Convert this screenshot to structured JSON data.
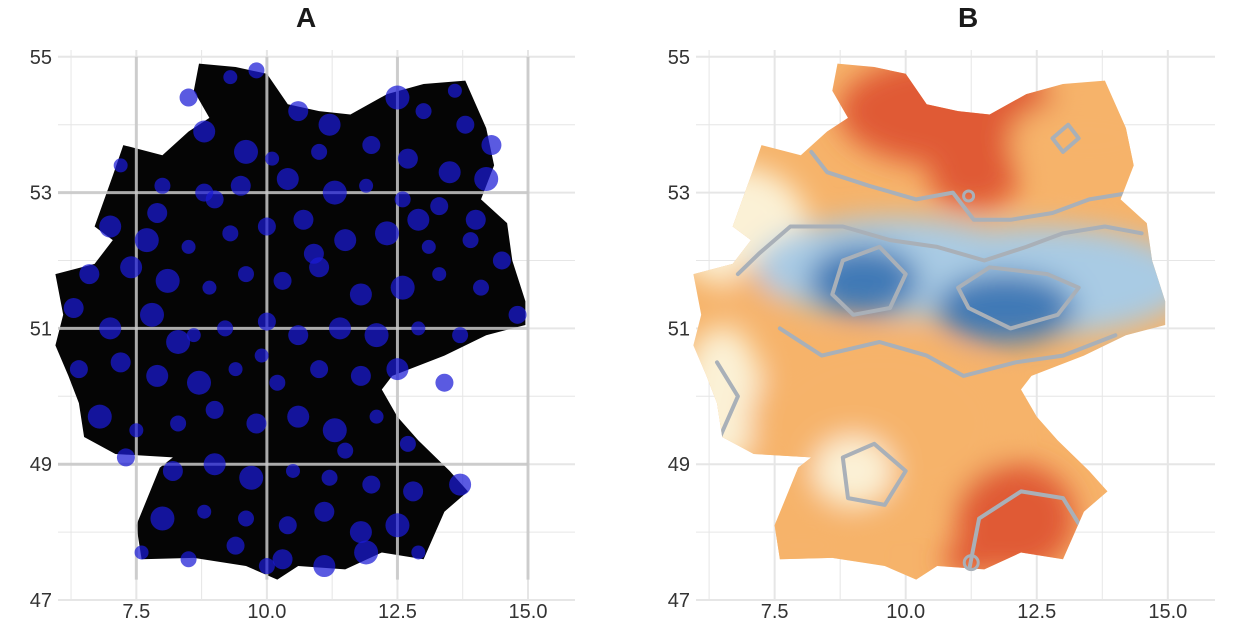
{
  "panels": [
    {
      "id": "A",
      "title": "A"
    },
    {
      "id": "B",
      "title": "B"
    }
  ],
  "axes": {
    "xlim": [
      6,
      15.9
    ],
    "ylim": [
      47,
      55.1
    ],
    "x_ticks": [
      "7.5",
      "10.0",
      "12.5",
      "15.0"
    ],
    "x_tick_values": [
      7.5,
      10.0,
      12.5,
      15.0
    ],
    "y_ticks": [
      "47",
      "49",
      "51",
      "53",
      "55"
    ],
    "y_tick_values": [
      47,
      49,
      51,
      53,
      55
    ]
  },
  "colors": {
    "land_a": "#050505",
    "stations": "#1a1ad6",
    "grid": "#e6e6e6",
    "grid_a": "#c8c8c8",
    "contour": "#a9b0b8",
    "warm_high": "#e05a34",
    "warm_mid": "#f6b36a",
    "neutral": "#fbf1d6",
    "cool_mid": "#a9cbe4",
    "cool_low": "#3f79b6"
  },
  "stations": [
    [
      9.3,
      54.7
    ],
    [
      9.8,
      54.8
    ],
    [
      8.5,
      54.4
    ],
    [
      10.6,
      54.2
    ],
    [
      11.2,
      54.0
    ],
    [
      12.5,
      54.4
    ],
    [
      13.6,
      54.5
    ],
    [
      13.0,
      54.2
    ],
    [
      13.8,
      54.0
    ],
    [
      14.3,
      53.7
    ],
    [
      8.8,
      53.9
    ],
    [
      9.6,
      53.6
    ],
    [
      10.1,
      53.5
    ],
    [
      11.0,
      53.6
    ],
    [
      12.0,
      53.7
    ],
    [
      12.7,
      53.5
    ],
    [
      13.5,
      53.3
    ],
    [
      14.2,
      53.2
    ],
    [
      7.2,
      53.4
    ],
    [
      8.0,
      53.1
    ],
    [
      8.8,
      53.0
    ],
    [
      9.5,
      53.1
    ],
    [
      10.4,
      53.2
    ],
    [
      11.3,
      53.0
    ],
    [
      11.9,
      53.1
    ],
    [
      12.6,
      52.9
    ],
    [
      13.3,
      52.8
    ],
    [
      14.0,
      52.6
    ],
    [
      7.0,
      52.5
    ],
    [
      7.7,
      52.3
    ],
    [
      8.5,
      52.2
    ],
    [
      9.3,
      52.4
    ],
    [
      10.0,
      52.5
    ],
    [
      10.7,
      52.6
    ],
    [
      11.5,
      52.3
    ],
    [
      12.3,
      52.4
    ],
    [
      13.1,
      52.2
    ],
    [
      13.9,
      52.3
    ],
    [
      14.5,
      52.0
    ],
    [
      6.6,
      51.8
    ],
    [
      7.4,
      51.9
    ],
    [
      8.1,
      51.7
    ],
    [
      8.9,
      51.6
    ],
    [
      9.6,
      51.8
    ],
    [
      10.3,
      51.7
    ],
    [
      11.0,
      51.9
    ],
    [
      11.8,
      51.5
    ],
    [
      12.6,
      51.6
    ],
    [
      13.3,
      51.8
    ],
    [
      14.1,
      51.6
    ],
    [
      14.8,
      51.2
    ],
    [
      6.3,
      51.3
    ],
    [
      7.0,
      51.0
    ],
    [
      7.8,
      51.2
    ],
    [
      8.6,
      50.9
    ],
    [
      9.2,
      51.0
    ],
    [
      10.0,
      51.1
    ],
    [
      10.6,
      50.9
    ],
    [
      11.4,
      51.0
    ],
    [
      12.1,
      50.9
    ],
    [
      12.9,
      51.0
    ],
    [
      13.7,
      50.9
    ],
    [
      6.4,
      50.4
    ],
    [
      7.2,
      50.5
    ],
    [
      7.9,
      50.3
    ],
    [
      8.7,
      50.2
    ],
    [
      9.4,
      50.4
    ],
    [
      10.2,
      50.2
    ],
    [
      11.0,
      50.4
    ],
    [
      11.8,
      50.3
    ],
    [
      12.5,
      50.4
    ],
    [
      6.8,
      49.7
    ],
    [
      7.5,
      49.5
    ],
    [
      8.3,
      49.6
    ],
    [
      9.0,
      49.8
    ],
    [
      9.8,
      49.6
    ],
    [
      10.6,
      49.7
    ],
    [
      11.3,
      49.5
    ],
    [
      12.1,
      49.7
    ],
    [
      12.7,
      49.3
    ],
    [
      7.3,
      49.1
    ],
    [
      8.2,
      48.9
    ],
    [
      9.0,
      49.0
    ],
    [
      9.7,
      48.8
    ],
    [
      10.5,
      48.9
    ],
    [
      11.2,
      48.8
    ],
    [
      12.0,
      48.7
    ],
    [
      12.8,
      48.6
    ],
    [
      13.7,
      48.7
    ],
    [
      8.0,
      48.2
    ],
    [
      8.8,
      48.3
    ],
    [
      9.6,
      48.2
    ],
    [
      10.4,
      48.1
    ],
    [
      11.1,
      48.3
    ],
    [
      11.8,
      48.0
    ],
    [
      12.5,
      48.1
    ],
    [
      7.6,
      47.7
    ],
    [
      8.5,
      47.6
    ],
    [
      9.4,
      47.8
    ],
    [
      10.3,
      47.6
    ],
    [
      11.1,
      47.5
    ],
    [
      11.9,
      47.7
    ],
    [
      12.9,
      47.7
    ],
    [
      10.0,
      47.5
    ],
    [
      9.0,
      52.9
    ],
    [
      10.9,
      52.1
    ],
    [
      12.9,
      52.6
    ],
    [
      8.3,
      50.8
    ],
    [
      9.9,
      50.6
    ],
    [
      11.5,
      49.2
    ],
    [
      13.4,
      50.2
    ],
    [
      7.9,
      52.7
    ]
  ]
}
